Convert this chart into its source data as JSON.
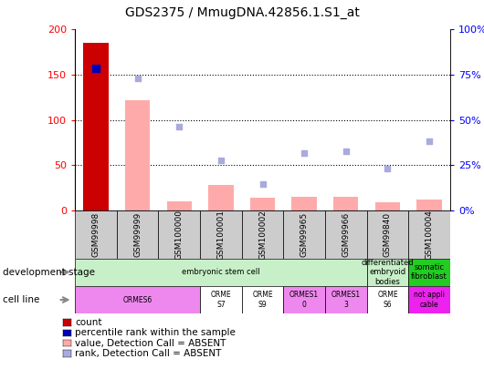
{
  "title": "GDS2375 / MmugDNA.42856.1.S1_at",
  "samples": [
    "GSM99998",
    "GSM99999",
    "GSM100000",
    "GSM100001",
    "GSM100002",
    "GSM99965",
    "GSM99966",
    "GSM99840",
    "GSM100004"
  ],
  "count_values": [
    185,
    0,
    0,
    0,
    0,
    0,
    0,
    0,
    0
  ],
  "value_absent": [
    0,
    122,
    10,
    28,
    14,
    15,
    15,
    9,
    12
  ],
  "rank_absent_left": [
    0,
    146,
    93,
    55,
    29,
    63,
    65,
    46,
    76
  ],
  "percentile_rank_left": [
    157,
    0,
    0,
    0,
    0,
    0,
    0,
    0,
    0
  ],
  "ylim_left": [
    0,
    200
  ],
  "ylim_right": [
    0,
    100
  ],
  "yticks_left": [
    0,
    50,
    100,
    150,
    200
  ],
  "yticks_right": [
    0,
    25,
    50,
    75,
    100
  ],
  "ytick_labels_left": [
    "0",
    "50",
    "100",
    "150",
    "200"
  ],
  "ytick_labels_right": [
    "0%",
    "25%",
    "50%",
    "75%",
    "100%"
  ],
  "bar_color_count": "#cc0000",
  "bar_color_absent": "#ffaaaa",
  "scatter_color_rank_absent": "#aaaadd",
  "scatter_color_percentile": "#0000bb",
  "dev_stage_groups": [
    {
      "label": "embryonic stem cell",
      "start": 0,
      "end": 7,
      "color": "#c8f0c8"
    },
    {
      "label": "differentiated\nembryoid\nbodies",
      "start": 7,
      "end": 8,
      "color": "#c8f0c8"
    },
    {
      "label": "somatic\nfibroblast",
      "start": 8,
      "end": 9,
      "color": "#22cc22"
    }
  ],
  "cell_line_data": [
    {
      "label": "ORMES6",
      "start": 0,
      "end": 3,
      "color": "#ee88ee"
    },
    {
      "label": "ORME\nS7",
      "start": 3,
      "end": 4,
      "color": "#ffffff"
    },
    {
      "label": "ORME\nS9",
      "start": 4,
      "end": 5,
      "color": "#ffffff"
    },
    {
      "label": "ORMES1\n0",
      "start": 5,
      "end": 6,
      "color": "#ee88ee"
    },
    {
      "label": "ORMES1\n3",
      "start": 6,
      "end": 7,
      "color": "#ee88ee"
    },
    {
      "label": "ORME\nS6",
      "start": 7,
      "end": 8,
      "color": "#ffffff"
    },
    {
      "label": "not appli\ncable",
      "start": 8,
      "end": 9,
      "color": "#ee22ee"
    }
  ],
  "legend_items": [
    {
      "label": "count",
      "color": "#cc0000"
    },
    {
      "label": "percentile rank within the sample",
      "color": "#0000bb"
    },
    {
      "label": "value, Detection Call = ABSENT",
      "color": "#ffaaaa"
    },
    {
      "label": "rank, Detection Call = ABSENT",
      "color": "#aaaadd"
    }
  ]
}
